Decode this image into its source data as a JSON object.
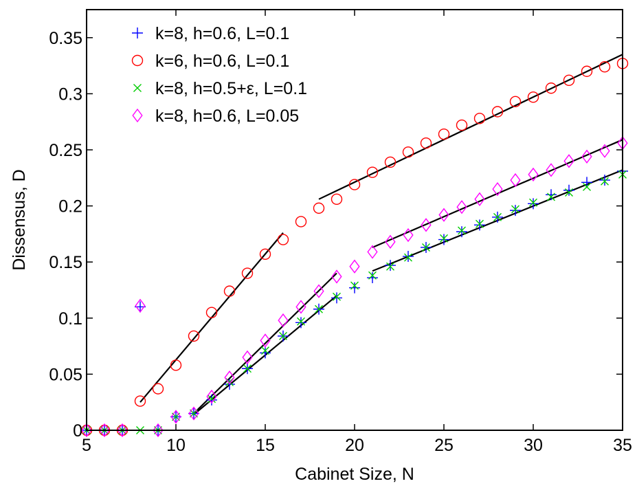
{
  "chart_data": {
    "type": "scatter",
    "xlabel": "Cabinet Size, N",
    "ylabel": "Dissensus, D",
    "xlim": [
      5,
      35
    ],
    "ylim": [
      0,
      0.375
    ],
    "xticks": [
      5,
      10,
      15,
      20,
      25,
      30,
      35
    ],
    "yticks": [
      0,
      0.05,
      0.1,
      0.15,
      0.2,
      0.25,
      0.3,
      0.35
    ],
    "xtick_labels": [
      "5",
      "10",
      "15",
      "20",
      "25",
      "30",
      "35"
    ],
    "ytick_labels": [
      "0",
      "0.05",
      "0.1",
      "0.15",
      "0.2",
      "0.25",
      "0.3",
      "0.35"
    ],
    "grid": false,
    "legend_position": "top-left",
    "series": [
      {
        "name": "k=8, h=0.6, L=0.1",
        "marker": "plus",
        "color": "#0000ff",
        "x": [
          5,
          6,
          7,
          8,
          9,
          10,
          11,
          12,
          13,
          14,
          15,
          16,
          17,
          18,
          19,
          20,
          21,
          22,
          23,
          24,
          25,
          26,
          27,
          28,
          29,
          30,
          31,
          32,
          33,
          34,
          35
        ],
        "y": [
          0,
          0,
          0,
          0.11,
          0,
          0.012,
          0.015,
          0.027,
          0.041,
          0.055,
          0.069,
          0.084,
          0.096,
          0.108,
          0.118,
          0.127,
          0.136,
          0.147,
          0.155,
          0.163,
          0.17,
          0.177,
          0.183,
          0.19,
          0.196,
          0.202,
          0.21,
          0.214,
          0.221,
          0.223,
          0.231
        ]
      },
      {
        "name": "k=6, h=0.6, L=0.1",
        "marker": "circle",
        "color": "#ff0000",
        "x": [
          5,
          6,
          7,
          8,
          9,
          10,
          11,
          12,
          13,
          14,
          15,
          16,
          17,
          18,
          19,
          20,
          21,
          22,
          23,
          24,
          25,
          26,
          27,
          28,
          29,
          30,
          31,
          32,
          33,
          34,
          35
        ],
        "y": [
          0,
          0,
          0,
          0.026,
          0.037,
          0.058,
          0.084,
          0.105,
          0.124,
          0.14,
          0.157,
          0.17,
          0.186,
          0.198,
          0.206,
          0.219,
          0.23,
          0.239,
          0.248,
          0.256,
          0.264,
          0.272,
          0.278,
          0.284,
          0.293,
          0.297,
          0.305,
          0.312,
          0.32,
          0.324,
          0.327
        ]
      },
      {
        "name": "k=8, h=0.5+ε, L=0.1",
        "marker": "cross",
        "color": "#00cc00",
        "x": [
          5,
          6,
          7,
          8,
          9,
          10,
          11,
          12,
          13,
          14,
          15,
          16,
          17,
          18,
          19,
          20,
          21,
          22,
          23,
          24,
          25,
          26,
          27,
          28,
          29,
          30,
          31,
          32,
          33,
          34,
          35
        ],
        "y": [
          0,
          0,
          0,
          0,
          0,
          0.012,
          0.015,
          0.028,
          0.043,
          0.055,
          0.071,
          0.084,
          0.097,
          0.108,
          0.119,
          0.129,
          0.138,
          0.146,
          0.154,
          0.163,
          0.171,
          0.178,
          0.184,
          0.19,
          0.197,
          0.203,
          0.208,
          0.212,
          0.217,
          0.222,
          0.228
        ]
      },
      {
        "name": "k=8, h=0.6, L=0.05",
        "marker": "diamond",
        "color": "#ff00ff",
        "x": [
          5,
          6,
          7,
          8,
          9,
          10,
          11,
          12,
          13,
          14,
          15,
          16,
          17,
          18,
          19,
          20,
          21,
          22,
          23,
          24,
          25,
          26,
          27,
          28,
          29,
          30,
          31,
          32,
          33,
          34,
          35
        ],
        "y": [
          0,
          0,
          0,
          0.111,
          0,
          0.012,
          0.015,
          0.03,
          0.047,
          0.065,
          0.08,
          0.098,
          0.11,
          0.124,
          0.137,
          0.146,
          0.159,
          0.168,
          0.174,
          0.183,
          0.192,
          0.199,
          0.206,
          0.215,
          0.223,
          0.228,
          0.232,
          0.24,
          0.244,
          0.249,
          0.256
        ]
      }
    ],
    "fit_lines": [
      {
        "x": [
          8,
          16
        ],
        "y": [
          0.025,
          0.176
        ]
      },
      {
        "x": [
          18,
          35
        ],
        "y": [
          0.206,
          0.335
        ]
      },
      {
        "x": [
          11,
          19
        ],
        "y": [
          0.015,
          0.14
        ]
      },
      {
        "x": [
          11,
          19
        ],
        "y": [
          0.014,
          0.12
        ]
      },
      {
        "x": [
          21,
          35
        ],
        "y": [
          0.163,
          0.259
        ]
      },
      {
        "x": [
          21,
          35
        ],
        "y": [
          0.142,
          0.232
        ]
      }
    ]
  }
}
